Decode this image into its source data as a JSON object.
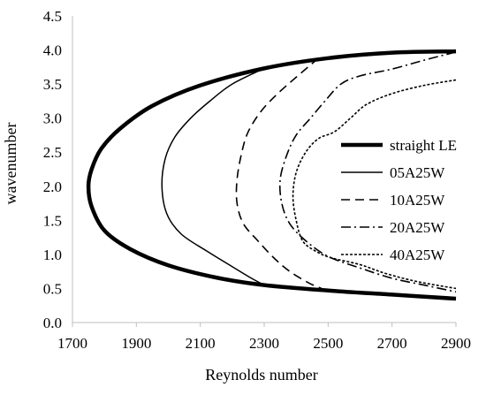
{
  "chart_data": {
    "type": "line",
    "xlabel": "Reynolds number",
    "ylabel": "wavenumber",
    "xlim": [
      1700,
      2900
    ],
    "ylim": [
      0.0,
      4.5
    ],
    "xticks": [
      "1700",
      "1900",
      "2100",
      "2300",
      "2500",
      "2700",
      "2900"
    ],
    "yticks": [
      "0.0",
      "0.5",
      "1.0",
      "1.5",
      "2.0",
      "2.5",
      "3.0",
      "3.5",
      "4.0",
      "4.5"
    ],
    "grid": false,
    "legend_position": "right",
    "series": [
      {
        "name": "straight LE",
        "style": "solid-thick",
        "points": [
          [
            2900,
            3.98
          ],
          [
            2700,
            3.96
          ],
          [
            2500,
            3.88
          ],
          [
            2300,
            3.73
          ],
          [
            2100,
            3.48
          ],
          [
            1950,
            3.18
          ],
          [
            1850,
            2.85
          ],
          [
            1790,
            2.55
          ],
          [
            1760,
            2.25
          ],
          [
            1750,
            2.0
          ],
          [
            1760,
            1.7
          ],
          [
            1800,
            1.35
          ],
          [
            1880,
            1.08
          ],
          [
            2000,
            0.84
          ],
          [
            2150,
            0.66
          ],
          [
            2300,
            0.55
          ],
          [
            2500,
            0.47
          ],
          [
            2700,
            0.41
          ],
          [
            2900,
            0.35
          ]
        ]
      },
      {
        "name": "05A25W",
        "style": "solid-thin",
        "points": [
          [
            2300,
            3.73
          ],
          [
            2200,
            3.5
          ],
          [
            2130,
            3.25
          ],
          [
            2070,
            3.0
          ],
          [
            2020,
            2.72
          ],
          [
            1990,
            2.4
          ],
          [
            1980,
            2.0
          ],
          [
            1995,
            1.6
          ],
          [
            2040,
            1.3
          ],
          [
            2120,
            1.05
          ],
          [
            2200,
            0.82
          ],
          [
            2260,
            0.65
          ],
          [
            2300,
            0.55
          ]
        ]
      },
      {
        "name": "10A25W",
        "style": "dash",
        "points": [
          [
            2470,
            3.88
          ],
          [
            2400,
            3.6
          ],
          [
            2340,
            3.35
          ],
          [
            2290,
            3.1
          ],
          [
            2250,
            2.8
          ],
          [
            2230,
            2.5
          ],
          [
            2215,
            2.1
          ],
          [
            2215,
            1.75
          ],
          [
            2235,
            1.45
          ],
          [
            2280,
            1.2
          ],
          [
            2330,
            0.95
          ],
          [
            2380,
            0.75
          ],
          [
            2440,
            0.58
          ],
          [
            2480,
            0.5
          ]
        ]
      },
      {
        "name": "20A25W",
        "style": "dashdot",
        "points": [
          [
            2900,
            3.97
          ],
          [
            2800,
            3.85
          ],
          [
            2700,
            3.72
          ],
          [
            2600,
            3.62
          ],
          [
            2540,
            3.5
          ],
          [
            2490,
            3.25
          ],
          [
            2445,
            3.0
          ],
          [
            2400,
            2.75
          ],
          [
            2370,
            2.45
          ],
          [
            2350,
            2.1
          ],
          [
            2355,
            1.75
          ],
          [
            2380,
            1.45
          ],
          [
            2430,
            1.2
          ],
          [
            2500,
            0.97
          ],
          [
            2600,
            0.8
          ],
          [
            2700,
            0.65
          ],
          [
            2800,
            0.55
          ],
          [
            2900,
            0.45
          ]
        ]
      },
      {
        "name": "40A25W",
        "style": "dot",
        "points": [
          [
            2900,
            3.56
          ],
          [
            2800,
            3.48
          ],
          [
            2700,
            3.36
          ],
          [
            2620,
            3.2
          ],
          [
            2570,
            3.0
          ],
          [
            2520,
            2.8
          ],
          [
            2470,
            2.7
          ],
          [
            2430,
            2.5
          ],
          [
            2400,
            2.2
          ],
          [
            2390,
            1.85
          ],
          [
            2400,
            1.5
          ],
          [
            2420,
            1.2
          ],
          [
            2460,
            1.05
          ],
          [
            2510,
            0.95
          ],
          [
            2600,
            0.85
          ],
          [
            2680,
            0.72
          ],
          [
            2780,
            0.6
          ],
          [
            2900,
            0.5
          ]
        ]
      }
    ]
  }
}
